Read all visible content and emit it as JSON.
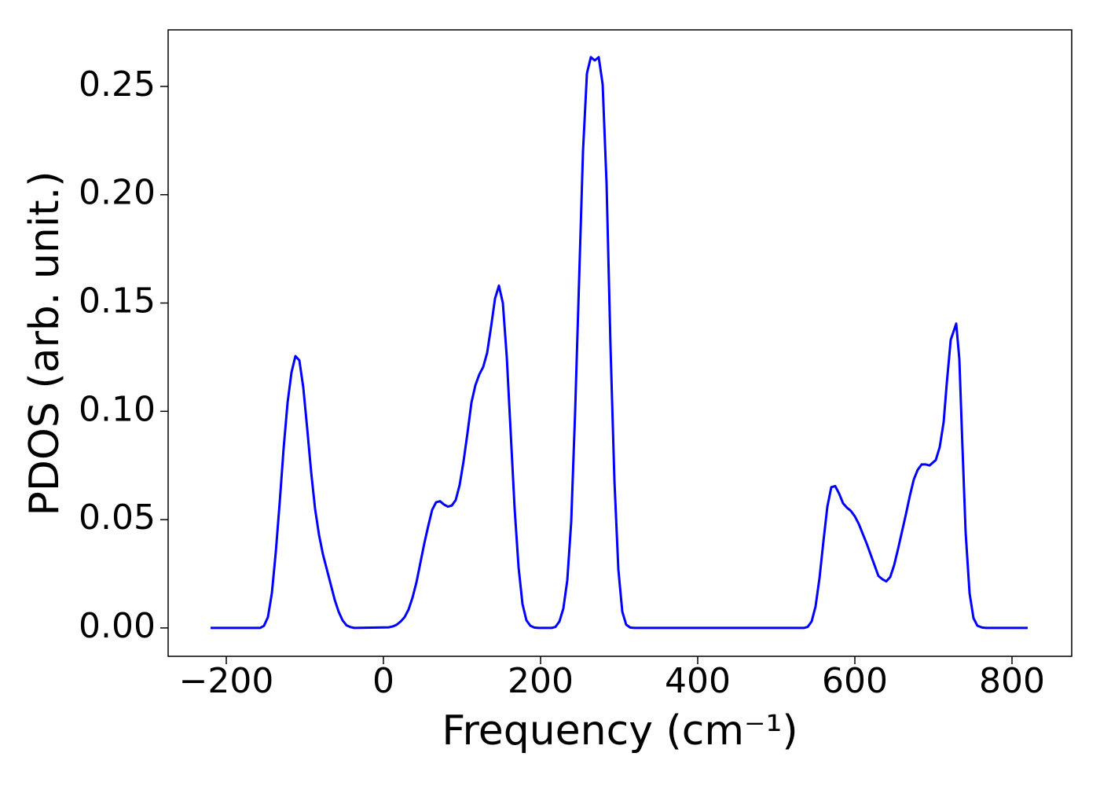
{
  "chart_data": {
    "type": "line",
    "xlabel": "Frequency (cm⁻¹)",
    "ylabel": "PDOS (arb. unit.)",
    "xlim": [
      -274,
      876
    ],
    "ylim": [
      -0.0131,
      0.2761
    ],
    "xticks": [
      {
        "value": -200,
        "label": "−200"
      },
      0,
      200,
      400,
      600,
      800
    ],
    "yticks": [
      {
        "value": 0,
        "label": "0.00"
      },
      {
        "value": 0.05,
        "label": "0.05"
      },
      {
        "value": 0.1,
        "label": "0.10"
      },
      {
        "value": 0.15,
        "label": "0.15"
      },
      {
        "value": 0.2,
        "label": "0.20"
      },
      {
        "value": 0.25,
        "label": "0.25"
      }
    ],
    "series": [
      {
        "color": "#0000ff",
        "x": [
          -220,
          -157,
          -152,
          -147,
          -142,
          -137,
          -132,
          -127,
          -122,
          -117,
          -112,
          -107,
          -102,
          -97,
          -92,
          -87,
          -82,
          -77,
          -72,
          -67,
          -62,
          -57,
          -52,
          -47,
          -42,
          -37,
          7,
          12,
          17,
          22,
          27,
          32,
          37,
          42,
          47,
          52,
          57,
          62,
          67,
          72,
          77,
          82,
          87,
          92,
          97,
          102,
          107,
          112,
          117,
          122,
          127,
          132,
          137,
          142,
          147,
          152,
          157,
          162,
          167,
          172,
          177,
          182,
          187,
          192,
          197,
          214,
          219,
          224,
          229,
          234,
          239,
          244,
          249,
          254,
          259,
          264,
          269,
          274,
          279,
          284,
          289,
          294,
          299,
          304,
          309,
          314,
          319,
          535,
          540,
          545,
          550,
          555,
          560,
          565,
          570,
          575,
          580,
          585,
          590,
          595,
          600,
          605,
          610,
          615,
          620,
          625,
          630,
          635,
          640,
          645,
          650,
          655,
          660,
          665,
          670,
          675,
          680,
          685,
          690,
          695,
          703,
          708,
          713,
          717,
          722,
          729,
          733,
          737,
          741,
          746,
          751,
          756,
          762,
          767,
          820
        ],
        "values": [
          0,
          0,
          0.001,
          0.005,
          0.016,
          0.035,
          0.058,
          0.083,
          0.104,
          0.118,
          0.1255,
          0.1235,
          0.111,
          0.092,
          0.072,
          0.055,
          0.043,
          0.034,
          0.027,
          0.02,
          0.013,
          0.0075,
          0.0035,
          0.0012,
          0.0004,
          0,
          0.0003,
          0.0007,
          0.0015,
          0.003,
          0.005,
          0.0085,
          0.014,
          0.021,
          0.03,
          0.039,
          0.047,
          0.0545,
          0.058,
          0.0585,
          0.057,
          0.056,
          0.0565,
          0.059,
          0.066,
          0.077,
          0.09,
          0.104,
          0.112,
          0.117,
          0.1205,
          0.127,
          0.139,
          0.152,
          0.158,
          0.15,
          0.125,
          0.09,
          0.055,
          0.028,
          0.011,
          0.0035,
          0.001,
          0.0002,
          0,
          0,
          0.0005,
          0.003,
          0.009,
          0.022,
          0.049,
          0.1,
          0.16,
          0.22,
          0.256,
          0.2635,
          0.262,
          0.2635,
          0.251,
          0.205,
          0.13,
          0.068,
          0.027,
          0.0075,
          0.0015,
          0.0002,
          0,
          0,
          0.0005,
          0.003,
          0.01,
          0.023,
          0.04,
          0.056,
          0.065,
          0.0655,
          0.062,
          0.0575,
          0.0555,
          0.054,
          0.0515,
          0.048,
          0.0435,
          0.039,
          0.034,
          0.029,
          0.024,
          0.0225,
          0.0215,
          0.0235,
          0.029,
          0.0365,
          0.0445,
          0.0525,
          0.061,
          0.0685,
          0.073,
          0.0755,
          0.0755,
          0.075,
          0.0775,
          0.0835,
          0.095,
          0.113,
          0.133,
          0.1405,
          0.124,
          0.083,
          0.044,
          0.016,
          0.0045,
          0.001,
          0.0002,
          0,
          0
        ]
      }
    ]
  }
}
